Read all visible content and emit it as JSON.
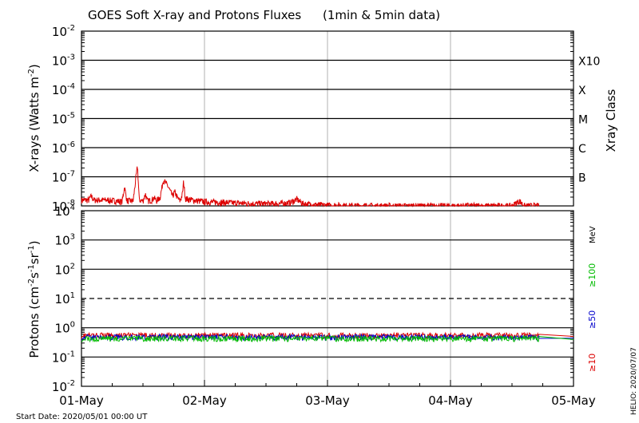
{
  "chart_data": [
    {
      "type": "line",
      "title": "GOES Soft X-ray and Protons Fluxes",
      "title_note": "(1min & 5min data)",
      "ylabel_base": "X-rays (Watts m",
      "ylabel_exp": "-2",
      "ylabel_end": ")",
      "yscale": "log",
      "ylim": [
        1e-08,
        0.01
      ],
      "y_ticks": [
        {
          "base": "10",
          "exp": "-8",
          "value": 1e-08
        },
        {
          "base": "10",
          "exp": "-7",
          "value": 1e-07
        },
        {
          "base": "10",
          "exp": "-6",
          "value": 1e-06
        },
        {
          "base": "10",
          "exp": "-5",
          "value": 1e-05
        },
        {
          "base": "10",
          "exp": "-4",
          "value": 0.0001
        },
        {
          "base": "10",
          "exp": "-3",
          "value": 0.001
        },
        {
          "base": "10",
          "exp": "-2",
          "value": 0.01
        }
      ],
      "right_label": "Xray Class",
      "xray_classes": [
        {
          "label": "B",
          "value": 1e-07
        },
        {
          "label": "C",
          "value": 1e-06
        },
        {
          "label": "M",
          "value": 1e-05
        },
        {
          "label": "X",
          "value": 0.0001
        },
        {
          "label": "X10",
          "value": 0.001
        }
      ],
      "series": [
        {
          "color": "#dd0000",
          "points": [
            [
              0.0,
              1.6e-08
            ],
            [
              0.06,
              1.6e-08
            ],
            [
              0.08,
              2.2e-08
            ],
            [
              0.1,
              1.6e-08
            ],
            [
              0.2,
              1.6e-08
            ],
            [
              0.28,
              1.5e-08
            ],
            [
              0.33,
              1.4e-08
            ],
            [
              0.35,
              4.5e-08
            ],
            [
              0.37,
              1.5e-08
            ],
            [
              0.42,
              1.5e-08
            ],
            [
              0.455,
              2.4e-07
            ],
            [
              0.47,
              1.6e-08
            ],
            [
              0.5,
              1.5e-08
            ],
            [
              0.52,
              2.6e-08
            ],
            [
              0.535,
              1.5e-08
            ],
            [
              0.57,
              1.6e-08
            ],
            [
              0.59,
              1.9e-08
            ],
            [
              0.61,
              1.5e-08
            ],
            [
              0.64,
              2e-08
            ],
            [
              0.665,
              8e-08
            ],
            [
              0.7,
              5e-08
            ],
            [
              0.74,
              2.2e-08
            ],
            [
              0.76,
              3e-08
            ],
            [
              0.78,
              1.9e-08
            ],
            [
              0.8,
              1.5e-08
            ],
            [
              0.82,
              2.4e-08
            ],
            [
              0.83,
              7e-08
            ],
            [
              0.845,
              1.8e-08
            ],
            [
              0.9,
              1.6e-08
            ],
            [
              1.0,
              1.4e-08
            ],
            [
              1.2,
              1.3e-08
            ],
            [
              1.4,
              1.2e-08
            ],
            [
              1.6,
              1.2e-08
            ],
            [
              1.7,
              1.3e-08
            ],
            [
              1.75,
              1.7e-08
            ],
            [
              1.8,
              1.2e-08
            ],
            [
              1.9,
              1.1e-08
            ],
            [
              2.0,
              1.05e-08
            ],
            [
              2.1,
              1.05e-08
            ],
            [
              2.2,
              1e-08
            ],
            [
              2.3,
              1.02e-08
            ],
            [
              2.35,
              1e-08
            ],
            [
              2.5,
              1e-08
            ],
            [
              2.8,
              1e-08
            ],
            [
              3.0,
              1e-08
            ],
            [
              3.15,
              1.02e-08
            ],
            [
              3.3,
              1e-08
            ],
            [
              3.5,
              1e-08
            ],
            [
              3.56,
              1.5e-08
            ],
            [
              3.6,
              1e-08
            ],
            [
              3.7,
              1e-08
            ],
            [
              4.0,
              1e-08
            ]
          ]
        }
      ]
    },
    {
      "type": "line",
      "ylabel_base": "Protons (cm",
      "ylabel_exp1": "-2",
      "ylabel_mid1": "s",
      "ylabel_exp2": "-1",
      "ylabel_mid2": "sr",
      "ylabel_exp3": "-1",
      "ylabel_end": ")",
      "yscale": "log",
      "ylim": [
        0.01,
        10000
      ],
      "y_ticks": [
        {
          "base": "10",
          "exp": "-2",
          "value": 0.01
        },
        {
          "base": "10",
          "exp": "-1",
          "value": 0.1
        },
        {
          "base": "10",
          "exp": "0",
          "value": 1
        },
        {
          "base": "10",
          "exp": "1",
          "value": 10
        },
        {
          "base": "10",
          "exp": "2",
          "value": 100
        },
        {
          "base": "10",
          "exp": "3",
          "value": 1000
        },
        {
          "base": "10",
          "exp": "4",
          "value": 10000
        }
      ],
      "threshold": 10,
      "energy_unit": "MeV",
      "legend": [
        {
          "label": "≥100",
          "color": "#00bb00"
        },
        {
          "label": "≥50",
          "color": "#0000cc"
        },
        {
          "label": "≥10",
          "color": "#dd0000"
        }
      ],
      "series": [
        {
          "name": "≥10",
          "color": "#dd0000",
          "level": 0.55
        },
        {
          "name": "≥50",
          "color": "#0000cc",
          "level": 0.48
        },
        {
          "name": "≥100",
          "color": "#00bb00",
          "level": 0.43
        }
      ],
      "xlim": [
        0,
        4
      ],
      "x_ticks": [
        {
          "label": "01-May",
          "value": 0
        },
        {
          "label": "02-May",
          "value": 1
        },
        {
          "label": "03-May",
          "value": 2
        },
        {
          "label": "04-May",
          "value": 3
        },
        {
          "label": "05-May",
          "value": 4
        }
      ]
    }
  ],
  "footer": {
    "start_date": "Start Date: 2020/05/01 00:00 UT",
    "credit": "HELIO: 2020/07/07"
  }
}
